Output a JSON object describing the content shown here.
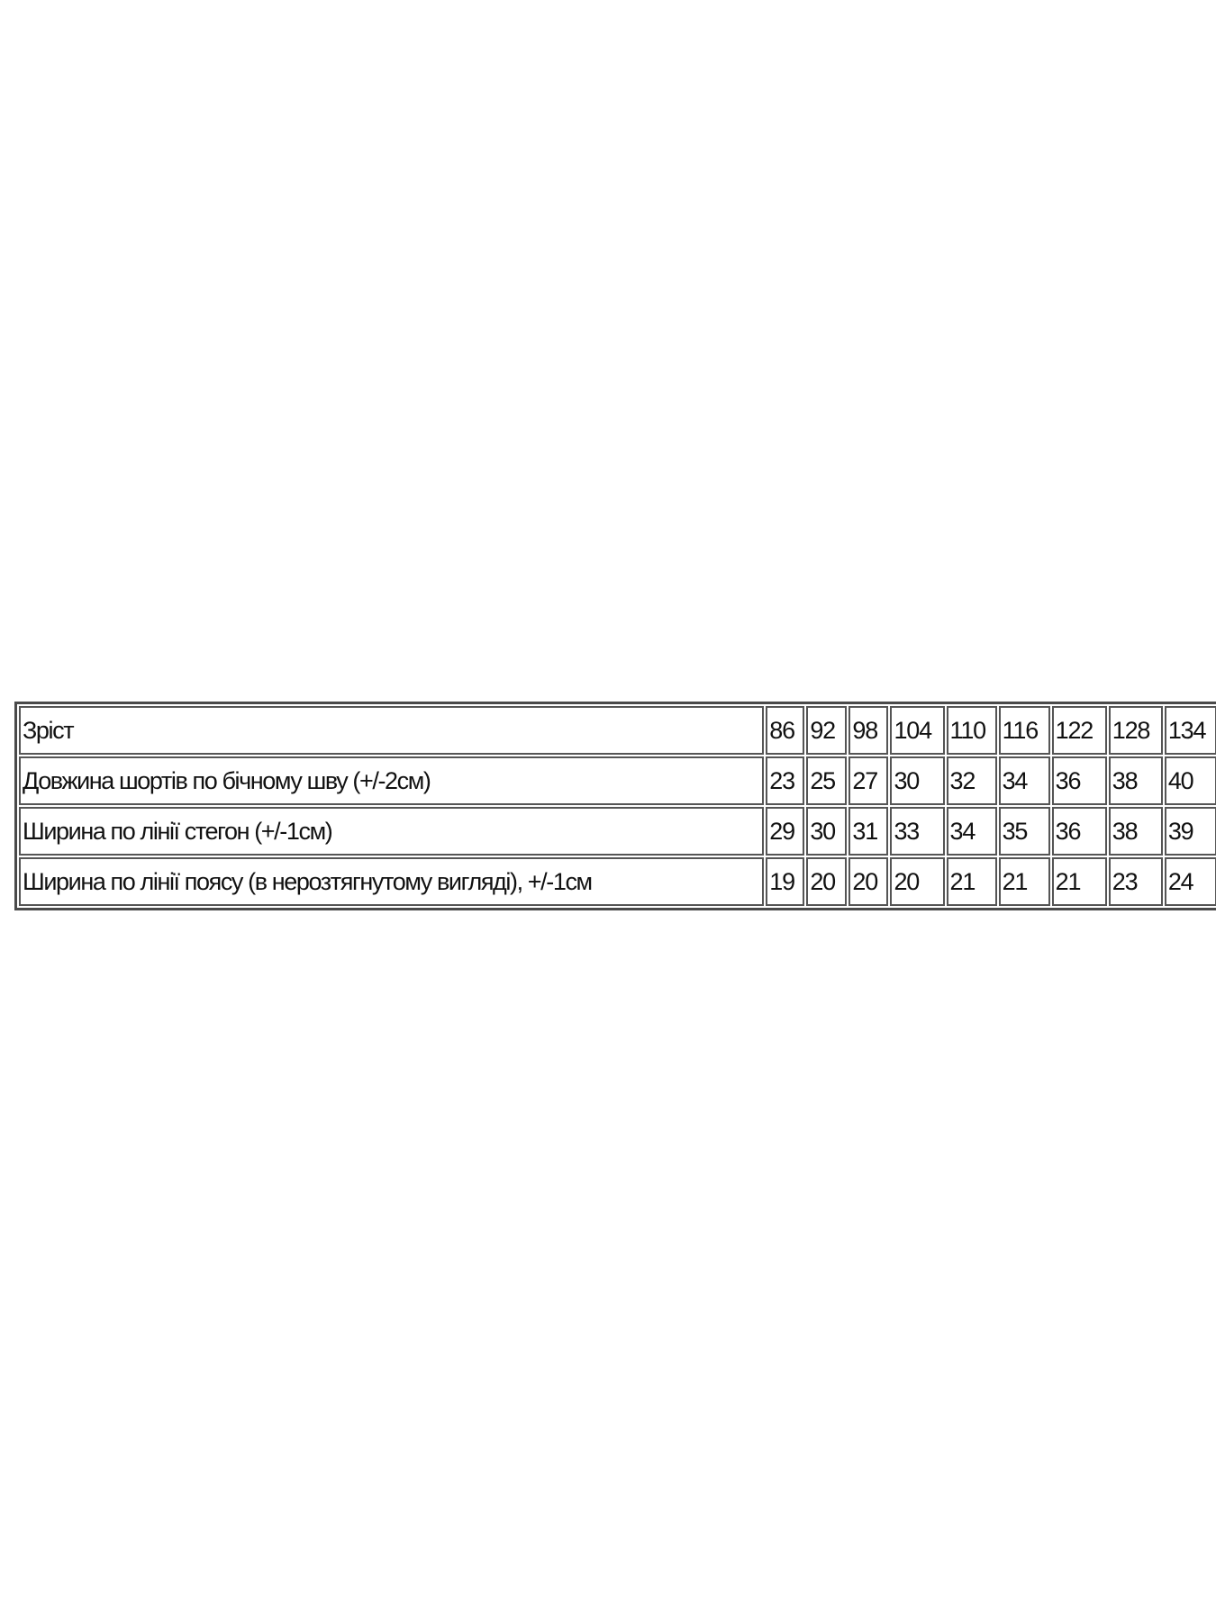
{
  "size_table": {
    "rows": [
      {
        "label": "Зріст",
        "values": [
          "86",
          "92",
          "98",
          "104",
          "110",
          "116",
          "122",
          "128",
          "134"
        ]
      },
      {
        "label": "Довжина шортів по бічному шву (+/-2см)",
        "values": [
          "23",
          "25",
          "27",
          "30",
          "32",
          "34",
          "36",
          "38",
          "40"
        ]
      },
      {
        "label": "Ширина по лінії стегон (+/-1см)",
        "values": [
          "29",
          "30",
          "31",
          "33",
          "34",
          "35",
          "36",
          "38",
          "39"
        ]
      },
      {
        "label": "Ширина по лінії поясу (в нерозтягнутому вигляді), +/-1см",
        "values": [
          "19",
          "20",
          "20",
          "20",
          "21",
          "21",
          "21",
          "23",
          "24"
        ]
      }
    ]
  }
}
